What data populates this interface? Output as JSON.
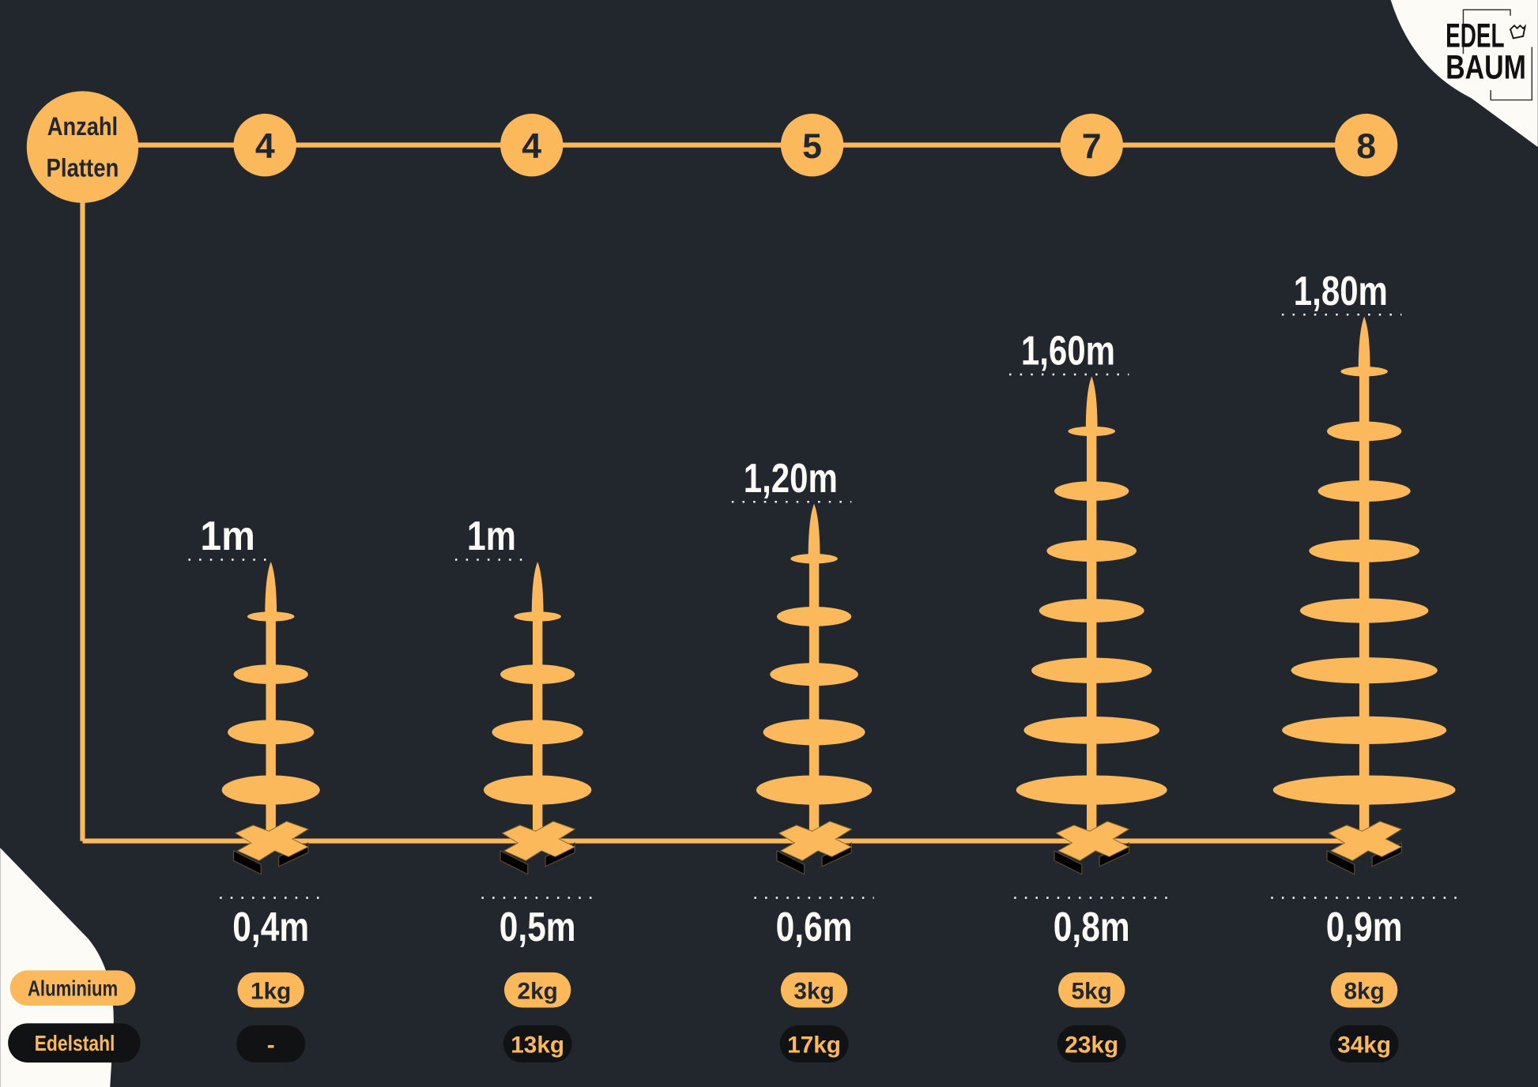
{
  "colors": {
    "background": "#22262d",
    "accent": "#fbb95b",
    "cream": "#fdfbf5",
    "dark": "#111214"
  },
  "logo": {
    "line1": "EDEL",
    "line2": "BAUM"
  },
  "plates_label": {
    "line1": "Anzahl",
    "line2": "Platten"
  },
  "legend": {
    "aluminium": "Aluminium",
    "edelstahl": "Edelstahl"
  },
  "trees": [
    {
      "plates": "4",
      "height": "1m",
      "width": "0,4m",
      "aluminium": "1kg",
      "edelstahl": "-"
    },
    {
      "plates": "4",
      "height": "1m",
      "width": "0,5m",
      "aluminium": "2kg",
      "edelstahl": "13kg"
    },
    {
      "plates": "5",
      "height": "1,20m",
      "width": "0,6m",
      "aluminium": "3kg",
      "edelstahl": "17kg"
    },
    {
      "plates": "7",
      "height": "1,60m",
      "width": "0,8m",
      "aluminium": "5kg",
      "edelstahl": "23kg"
    },
    {
      "plates": "8",
      "height": "1,80m",
      "width": "0,9m",
      "aluminium": "8kg",
      "edelstahl": "34kg"
    }
  ]
}
